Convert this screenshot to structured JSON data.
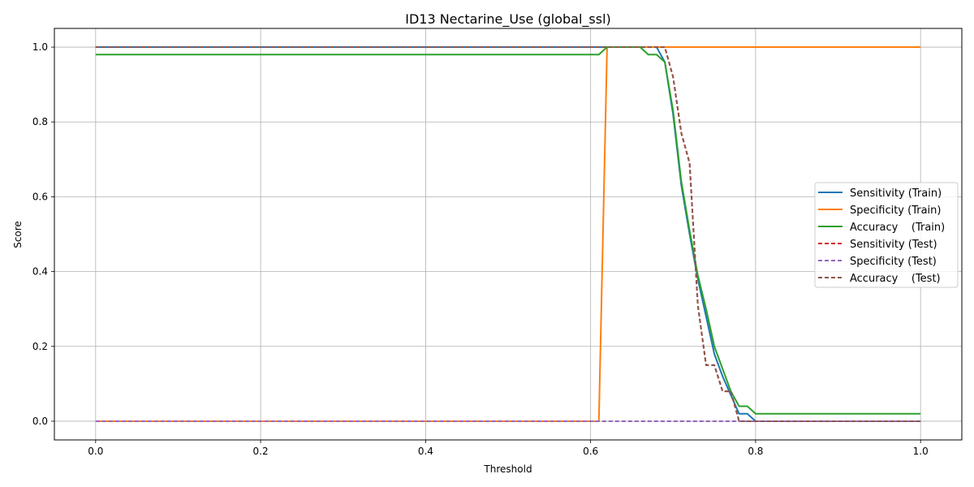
{
  "chart_data": {
    "type": "line",
    "title": "ID13 Nectarine_Use (global_ssl)",
    "xlabel": "Threshold",
    "ylabel": "Score",
    "xlim": [
      -0.05,
      1.05
    ],
    "ylim": [
      -0.05,
      1.05
    ],
    "xticks": [
      0.0,
      0.2,
      0.4,
      0.6,
      0.8,
      1.0
    ],
    "xtick_labels": [
      "0.0",
      "0.2",
      "0.4",
      "0.6",
      "0.8",
      "1.0"
    ],
    "yticks": [
      0.0,
      0.2,
      0.4,
      0.6,
      0.8,
      1.0
    ],
    "ytick_labels": [
      "0.0",
      "0.2",
      "0.4",
      "0.6",
      "0.8",
      "1.0"
    ],
    "grid": true,
    "legend_position": "center-right",
    "series": [
      {
        "name": "Sensitivity (Train)",
        "color": "#1f77b4",
        "style": "solid",
        "x": [
          0.0,
          0.6,
          0.62,
          0.66,
          0.67,
          0.68,
          0.69,
          0.7,
          0.71,
          0.72,
          0.73,
          0.74,
          0.75,
          0.76,
          0.77,
          0.78,
          0.79,
          0.8,
          1.0
        ],
        "y": [
          1.0,
          1.0,
          1.0,
          1.0,
          1.0,
          1.0,
          0.96,
          0.82,
          0.63,
          0.5,
          0.38,
          0.28,
          0.18,
          0.12,
          0.07,
          0.02,
          0.02,
          0.0,
          0.0
        ]
      },
      {
        "name": "Specificity (Train)",
        "color": "#ff7f0e",
        "style": "solid",
        "x": [
          0.0,
          0.61,
          0.62,
          1.0
        ],
        "y": [
          0.0,
          0.0,
          1.0,
          1.0
        ]
      },
      {
        "name": "Accuracy    (Train)",
        "color": "#2ca02c",
        "style": "solid",
        "x": [
          0.0,
          0.61,
          0.62,
          0.66,
          0.67,
          0.68,
          0.69,
          0.7,
          0.71,
          0.72,
          0.73,
          0.74,
          0.75,
          0.76,
          0.77,
          0.78,
          0.79,
          0.8,
          1.0
        ],
        "y": [
          0.98,
          0.98,
          1.0,
          1.0,
          0.98,
          0.98,
          0.96,
          0.83,
          0.64,
          0.51,
          0.39,
          0.3,
          0.2,
          0.14,
          0.08,
          0.04,
          0.04,
          0.02,
          0.02
        ]
      },
      {
        "name": "Sensitivity (Test)",
        "color": "#d62728",
        "style": "dashed",
        "x": [
          0.0,
          0.69,
          0.7,
          0.71,
          0.72,
          0.73,
          0.74,
          0.75,
          0.76,
          0.77,
          0.78,
          1.0
        ],
        "y": [
          1.0,
          1.0,
          0.92,
          0.77,
          0.69,
          0.31,
          0.15,
          0.15,
          0.08,
          0.08,
          0.0,
          0.0
        ]
      },
      {
        "name": "Specificity (Test)",
        "color": "#9467bd",
        "style": "dashed",
        "x": [
          0.0,
          1.0
        ],
        "y": [
          0.0,
          0.0
        ]
      },
      {
        "name": "Accuracy    (Test)",
        "color": "#8c564b",
        "style": "dashed",
        "x": [
          0.0,
          0.69,
          0.7,
          0.71,
          0.72,
          0.73,
          0.74,
          0.75,
          0.76,
          0.77,
          0.78,
          1.0
        ],
        "y": [
          1.0,
          1.0,
          0.92,
          0.77,
          0.69,
          0.31,
          0.15,
          0.15,
          0.08,
          0.08,
          0.0,
          0.0
        ]
      }
    ]
  }
}
